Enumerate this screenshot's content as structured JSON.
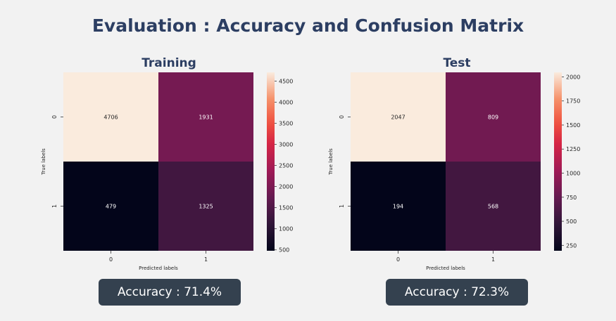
{
  "title": "Evaluation : Accuracy and Confusion Matrix",
  "colors": {
    "title": "#2c3e62",
    "accuracy_box": "#34414f",
    "background": "#f2f2f2"
  },
  "panels": [
    {
      "title": "Training",
      "accuracy_label": "Accuracy : 71.4%"
    },
    {
      "title": "Test",
      "accuracy_label": "Accuracy : 72.3%"
    }
  ],
  "chart_data": [
    {
      "type": "heatmap",
      "title": "Training",
      "xlabel": "Predicted labels",
      "ylabel": "True labels",
      "x_categories": [
        "0",
        "1"
      ],
      "y_categories": [
        "0",
        "1"
      ],
      "values": [
        [
          4706,
          1931
        ],
        [
          479,
          1325
        ]
      ],
      "colorbar": {
        "min": 479,
        "max": 4706,
        "ticks": [
          500,
          1000,
          1500,
          2000,
          2500,
          3000,
          3500,
          4000,
          4500
        ]
      },
      "colormap": "rocket"
    },
    {
      "type": "heatmap",
      "title": "Test",
      "xlabel": "Predicted labels",
      "ylabel": "True labels",
      "x_categories": [
        "0",
        "1"
      ],
      "y_categories": [
        "0",
        "1"
      ],
      "values": [
        [
          2047,
          809
        ],
        [
          194,
          568
        ]
      ],
      "colorbar": {
        "min": 194,
        "max": 2047,
        "ticks": [
          250,
          500,
          750,
          1000,
          1250,
          1500,
          1750,
          2000
        ]
      },
      "colormap": "rocket"
    }
  ]
}
